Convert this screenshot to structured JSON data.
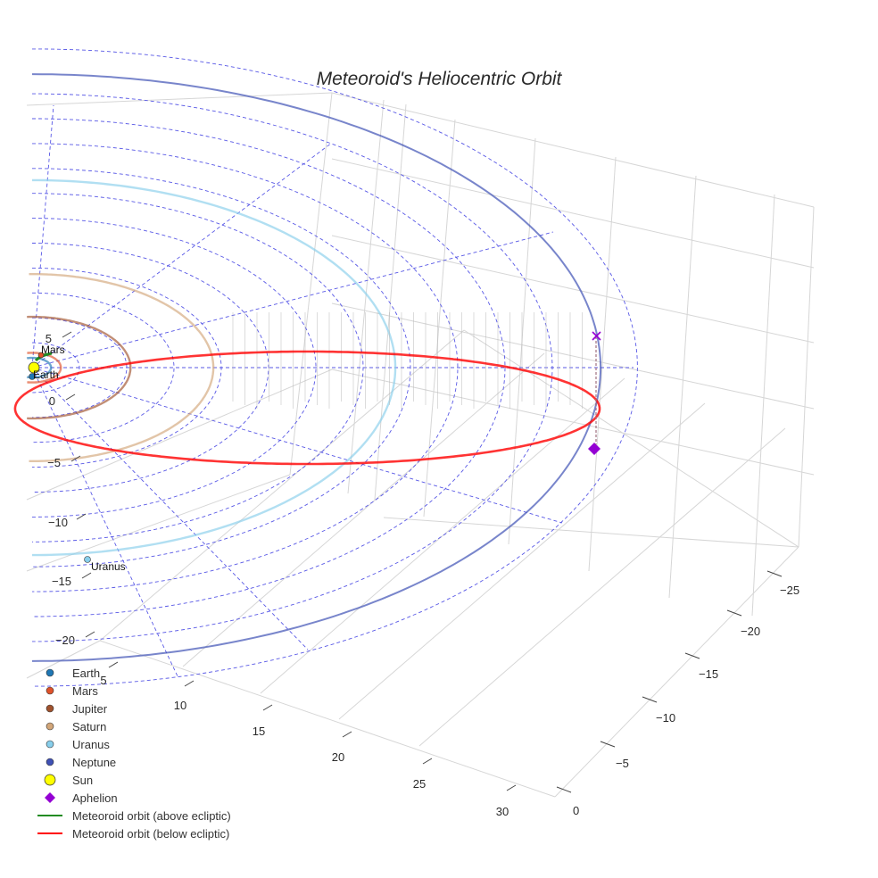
{
  "chart_data": {
    "type": "scatter3d",
    "title": "Meteoroid's Heliocentric Orbit",
    "axes": {
      "x_ticks": [
        "5",
        "10",
        "15",
        "20",
        "25",
        "30"
      ],
      "y_ticks": [
        "−25",
        "−20",
        "−15",
        "−10",
        "−5",
        "0"
      ],
      "z_ticks": [
        "5",
        "0",
        "−5",
        "−10",
        "−15",
        "−20"
      ]
    },
    "planets": [
      {
        "name": "Earth",
        "color": "#1f77b4",
        "orbit_radius_au": 1.0
      },
      {
        "name": "Mars",
        "color": "#e0522a",
        "orbit_radius_au": 1.52
      },
      {
        "name": "Jupiter",
        "color": "#a0522d",
        "orbit_radius_au": 5.2
      },
      {
        "name": "Saturn",
        "color": "#d2a679",
        "orbit_radius_au": 9.58
      },
      {
        "name": "Uranus",
        "color": "#87ceeb",
        "orbit_radius_au": 19.2
      },
      {
        "name": "Neptune",
        "color": "#3f51b5",
        "orbit_radius_au": 30.05
      }
    ],
    "plot_labels": {
      "mars": "Mars",
      "earth": "Earth",
      "uranus": "Uranus"
    },
    "legend": [
      {
        "label": "Earth",
        "symbol": "dot",
        "color": "#1f77b4"
      },
      {
        "label": "Mars",
        "symbol": "dot",
        "color": "#e0522a"
      },
      {
        "label": "Jupiter",
        "symbol": "dot",
        "color": "#a0522d"
      },
      {
        "label": "Saturn",
        "symbol": "dot",
        "color": "#d2a679"
      },
      {
        "label": "Uranus",
        "symbol": "dot",
        "color": "#87ceeb"
      },
      {
        "label": "Neptune",
        "symbol": "dot",
        "color": "#3f51b5"
      },
      {
        "label": "Sun",
        "symbol": "sun",
        "color": "#ffff00"
      },
      {
        "label": "Aphelion",
        "symbol": "diamond",
        "color": "#9400d3"
      },
      {
        "label": "Meteoroid orbit (above ecliptic)",
        "symbol": "line",
        "color": "#228b22"
      },
      {
        "label": "Meteoroid orbit (below ecliptic)",
        "symbol": "line",
        "color": "#ff0000"
      }
    ],
    "meteoroid_orbit": {
      "aphelion_au": 30.0,
      "perihelion_au": 0.9,
      "color_above": "#228b22",
      "color_below": "#ff0000"
    },
    "sun_color": "#ffff00",
    "aphelion_color": "#9400d3"
  }
}
